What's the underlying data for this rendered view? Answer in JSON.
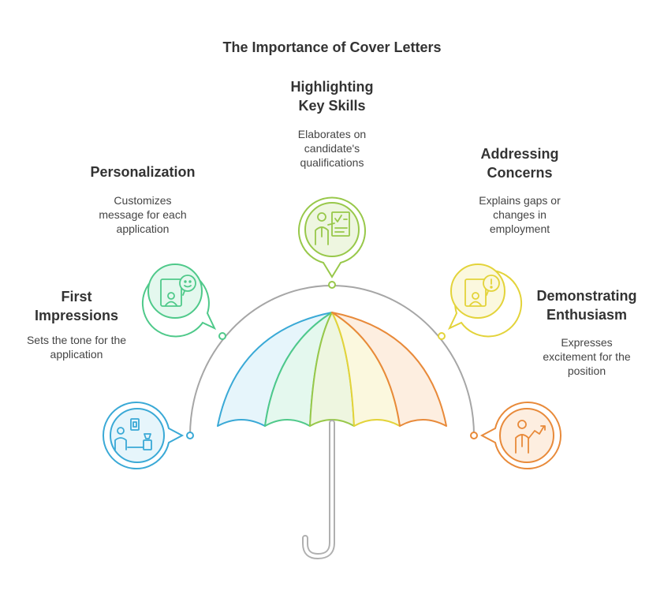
{
  "title": "The Importance of Cover Letters",
  "colors": {
    "blue": "#3aa9d6",
    "green": "#4fc98a",
    "lime": "#98c84a",
    "yellow": "#e3d33a",
    "orange": "#e88a3a",
    "arc": "#a6a6a6",
    "handle": "#b0b0b0"
  },
  "items": [
    {
      "key": "first",
      "title_lines": [
        "First",
        "Impressions"
      ],
      "desc_lines": [
        "Sets the tone for the",
        "application"
      ],
      "icon": "interview-icon",
      "color": "#3aa9d6"
    },
    {
      "key": "personalization",
      "title_lines": [
        "Personalization"
      ],
      "desc_lines": [
        "Customizes",
        "message for each",
        "application"
      ],
      "icon": "smiley-document-icon",
      "color": "#4fc98a"
    },
    {
      "key": "skills",
      "title_lines": [
        "Highlighting",
        "Key Skills"
      ],
      "desc_lines": [
        "Elaborates on",
        "candidate's",
        "qualifications"
      ],
      "icon": "presenter-icon",
      "color": "#98c84a"
    },
    {
      "key": "concerns",
      "title_lines": [
        "Addressing",
        "Concerns"
      ],
      "desc_lines": [
        "Explains gaps or",
        "changes in",
        "employment"
      ],
      "icon": "alert-document-icon",
      "color": "#e3d33a"
    },
    {
      "key": "enthusiasm",
      "title_lines": [
        "Demonstrating",
        "Enthusiasm"
      ],
      "desc_lines": [
        "Expresses",
        "excitement for the",
        "position"
      ],
      "icon": "enthusiastic-person-icon",
      "color": "#e88a3a"
    }
  ]
}
